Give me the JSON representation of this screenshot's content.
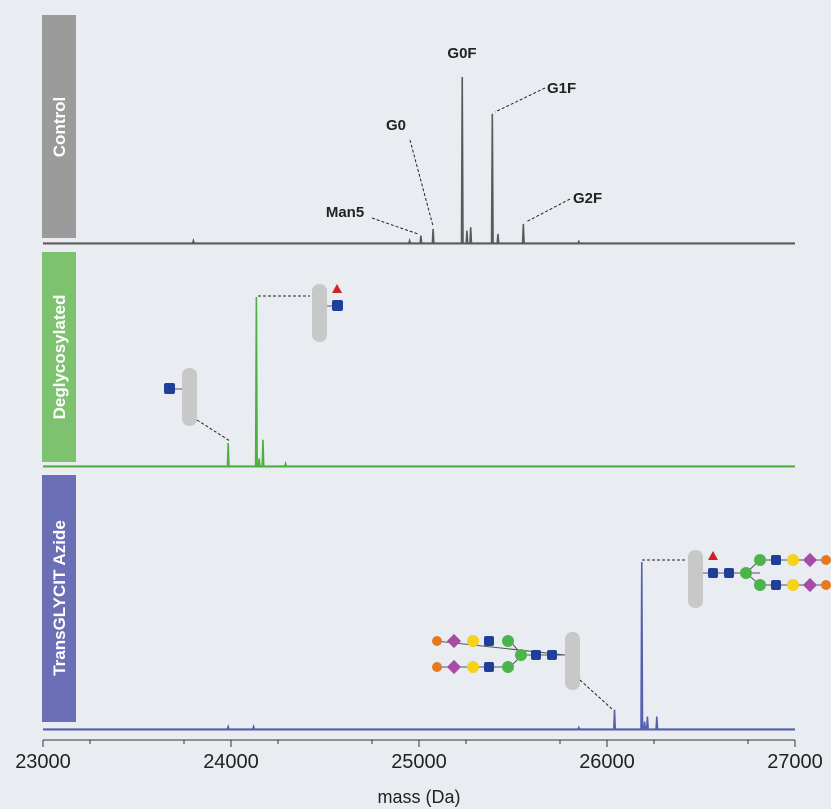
{
  "chart_data": [
    {
      "type": "line",
      "label": "Control",
      "color": "#5a5a5a",
      "xlim": [
        23000,
        27000
      ],
      "ylim": [
        0,
        100
      ],
      "x": [
        23000,
        23796,
        23800,
        23804,
        24946,
        24950,
        24954,
        25006,
        25010,
        25014,
        25071,
        25075,
        25079,
        25226,
        25230,
        25234,
        25251,
        25255,
        25259,
        25271,
        25275,
        25279,
        25386,
        25390,
        25394,
        25416,
        25420,
        25424,
        25551,
        25555,
        25559,
        25846,
        25850,
        25854,
        27000
      ],
      "values": [
        0.5,
        0.5,
        2,
        0.5,
        0.5,
        2,
        0.5,
        0.5,
        5,
        0.5,
        0.5,
        9,
        0.5,
        0.5,
        100,
        0.5,
        0.5,
        8,
        0.5,
        0.5,
        10,
        0.5,
        0.5,
        78,
        0.5,
        0.5,
        6,
        0.5,
        0.5,
        12,
        0.5,
        0.5,
        1.5,
        0.5,
        0.5
      ],
      "annotations": [
        "G0F",
        "G1F",
        "G0",
        "Man5",
        "G2F"
      ]
    },
    {
      "type": "line",
      "label": "Deglycosylated",
      "color": "#4caf3f",
      "xlim": [
        23000,
        27000
      ],
      "ylim": [
        0,
        100
      ],
      "x": [
        23000,
        23981,
        23985,
        23989,
        24131,
        24135,
        24139,
        24146,
        24150,
        24154,
        24166,
        24170,
        24174,
        24286,
        24290,
        24294,
        27000
      ],
      "values": [
        0.5,
        0.5,
        14,
        0.5,
        0.5,
        100,
        0.5,
        0.5,
        5,
        0.5,
        0.5,
        16,
        0.5,
        0.5,
        2,
        0.5,
        0.5
      ]
    },
    {
      "type": "line",
      "label": "TransGLYCIT Azide",
      "color": "#5560b0",
      "xlim": [
        23000,
        27000
      ],
      "ylim": [
        0,
        100
      ],
      "x": [
        23000,
        23981,
        23985,
        23989,
        24116,
        24120,
        24124,
        25846,
        25850,
        25854,
        26036,
        26040,
        26044,
        26181,
        26185,
        26189,
        26196,
        26200,
        26204,
        26211,
        26215,
        26219,
        26261,
        26265,
        26269,
        27000
      ],
      "values": [
        0.5,
        0.5,
        2,
        0.5,
        0.5,
        2,
        0.5,
        0.5,
        1.5,
        0.5,
        0.5,
        12,
        0.5,
        0.5,
        100,
        0.5,
        0.5,
        5,
        0.5,
        0.5,
        8,
        0.5,
        0.5,
        8,
        0.5,
        0.5
      ],
      "xticks": [
        23000,
        24000,
        25000,
        26000,
        27000
      ],
      "xlabel": "mass (Da)"
    }
  ]
}
